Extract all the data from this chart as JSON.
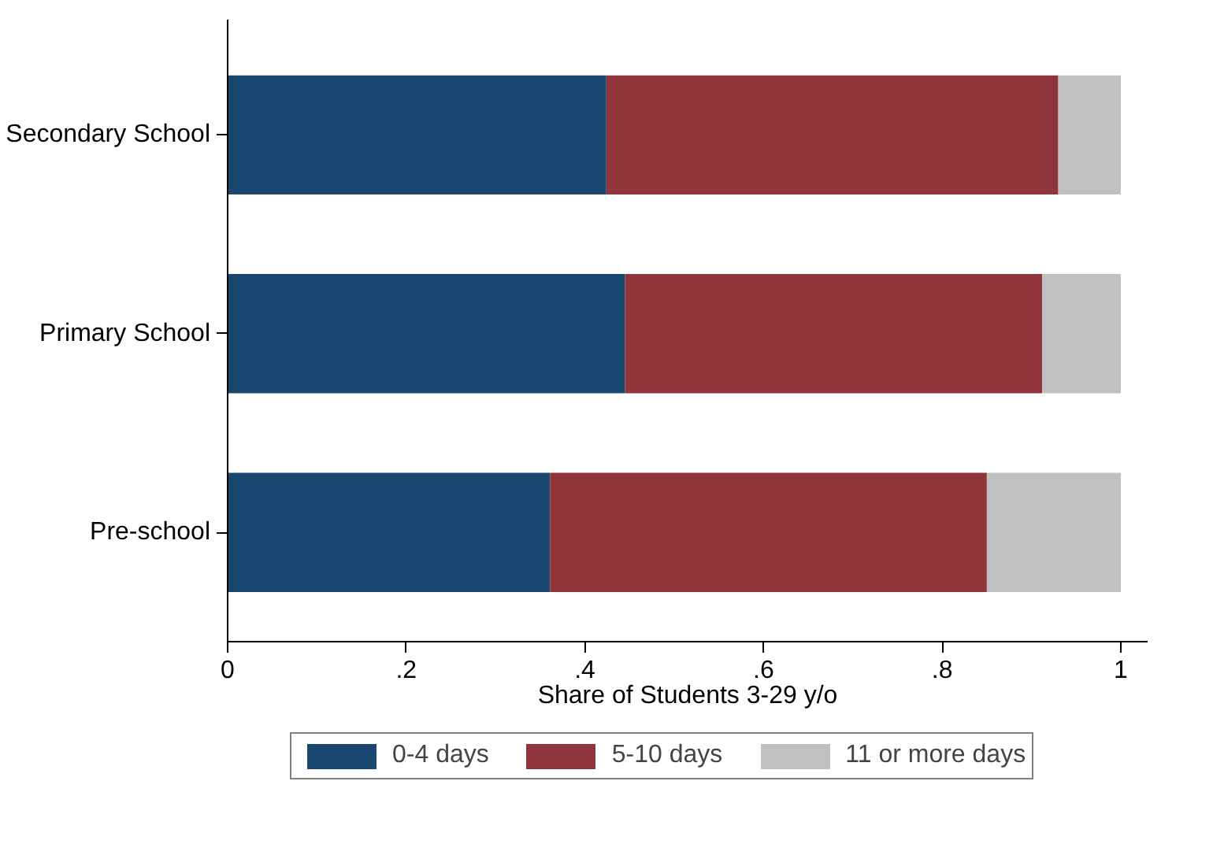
{
  "chart_data": {
    "type": "bar",
    "orientation": "horizontal",
    "stacked": true,
    "categories": [
      "Secondary School",
      "Primary School",
      "Pre-school"
    ],
    "series": [
      {
        "name": "0-4 days",
        "color": "#1a476f",
        "values": [
          0.424,
          0.445,
          0.361
        ]
      },
      {
        "name": "5-10 days",
        "color": "#90353b",
        "values": [
          0.506,
          0.467,
          0.489
        ]
      },
      {
        "name": "11 or more days",
        "color": "#c0c0c0",
        "values": [
          0.07,
          0.088,
          0.15
        ]
      }
    ],
    "xlabel": "Share of Students 3-29 y/o",
    "xlim": [
      0,
      1.03
    ],
    "xticks": [
      0,
      {
        "value": 0.2,
        "label": ".2"
      },
      {
        "value": 0.4,
        "label": ".4"
      },
      {
        "value": 0.6,
        "label": ".6"
      },
      {
        "value": 0.8,
        "label": ".8"
      },
      1
    ],
    "grid": false,
    "legend": "bottom"
  }
}
